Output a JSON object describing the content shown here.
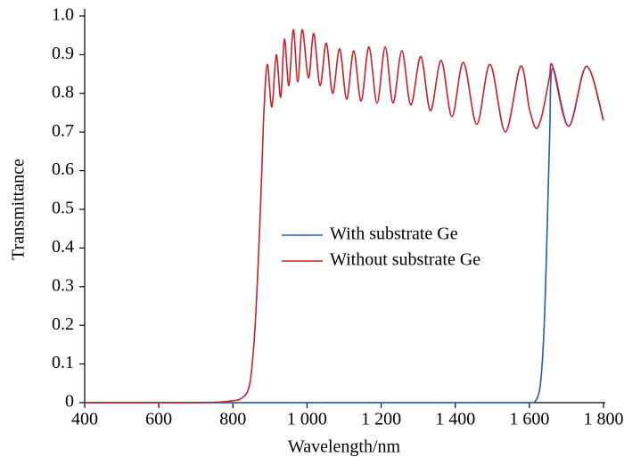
{
  "chart_data": {
    "type": "line",
    "xlabel": "Wavelength/nm",
    "ylabel": "Transmittance",
    "x": [
      400,
      600,
      750,
      800,
      821,
      840,
      850,
      860,
      870,
      878,
      884,
      893,
      905,
      917,
      929,
      939,
      951,
      963,
      975,
      987,
      1004,
      1018,
      1035,
      1052,
      1069,
      1088,
      1107,
      1126,
      1146,
      1167,
      1189,
      1211,
      1232,
      1256,
      1280,
      1307,
      1333,
      1362,
      1391,
      1422,
      1458,
      1494,
      1535,
      1576,
      1600,
      1617,
      1630,
      1640,
      1648,
      1655,
      1663,
      1706,
      1754,
      1800
    ],
    "series": [
      {
        "name": "With substrate Ge",
        "color": "#1f5fa8",
        "values": [
          0,
          0,
          0,
          0,
          0,
          0,
          0,
          0,
          0,
          0,
          0,
          0,
          0,
          0,
          0,
          0,
          0,
          0,
          0,
          0,
          0,
          0,
          0,
          0,
          0,
          0,
          0,
          0,
          0,
          0,
          0,
          0,
          0,
          0,
          0,
          0,
          0,
          0,
          0,
          0,
          0,
          0,
          0,
          0,
          0,
          0.005,
          0.05,
          0.2,
          0.45,
          0.7,
          0.865,
          0.715,
          0.87,
          0.73
        ]
      },
      {
        "name": "Without substrate Ge",
        "color": "#c8202a",
        "values": [
          0,
          0,
          0.001,
          0.005,
          0.01,
          0.03,
          0.08,
          0.2,
          0.4,
          0.6,
          0.76,
          0.875,
          0.765,
          0.9,
          0.79,
          0.94,
          0.82,
          0.965,
          0.83,
          0.965,
          0.84,
          0.955,
          0.82,
          0.93,
          0.8,
          0.915,
          0.785,
          0.91,
          0.78,
          0.92,
          0.775,
          0.92,
          0.775,
          0.91,
          0.77,
          0.895,
          0.755,
          0.885,
          0.74,
          0.88,
          0.72,
          0.875,
          0.7,
          0.87,
          0.76,
          0.71,
          0.73,
          0.77,
          0.81,
          0.845,
          0.87,
          0.715,
          0.87,
          0.73
        ]
      }
    ],
    "xlim": [
      400,
      1800
    ],
    "xticks": [
      400,
      600,
      800,
      {
        "value": 1000,
        "label": "1 000"
      },
      {
        "value": 1200,
        "label": "1 200"
      },
      {
        "value": 1400,
        "label": "1 400"
      },
      {
        "value": 1600,
        "label": "1 600"
      },
      {
        "value": 1800,
        "label": "1 800"
      }
    ],
    "ylim": [
      0,
      1
    ],
    "yticks": [
      0,
      0.1,
      0.2,
      0.3,
      0.4,
      0.5,
      0.6,
      0.7,
      0.8,
      0.9,
      {
        "value": 1,
        "label": "1.0"
      }
    ],
    "legend": "center",
    "grid": false
  }
}
